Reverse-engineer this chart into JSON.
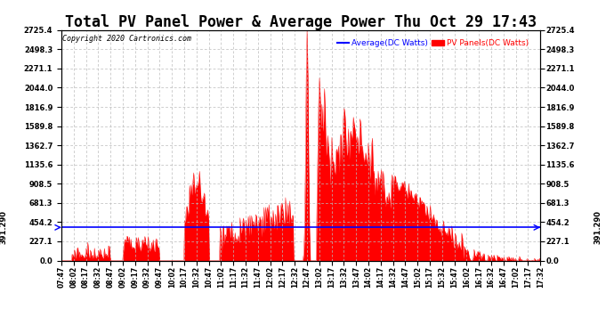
{
  "title": "Total PV Panel Power & Average Power Thu Oct 29 17:43",
  "copyright": "Copyright 2020 Cartronics.com",
  "legend_average": "Average(DC Watts)",
  "legend_pv": "PV Panels(DC Watts)",
  "legend_average_color": "#0000ff",
  "legend_pv_color": "#ff0000",
  "ymin": 0.0,
  "ymax": 2725.4,
  "yticks": [
    0.0,
    227.1,
    454.2,
    681.3,
    908.5,
    1135.6,
    1362.7,
    1589.8,
    1816.9,
    2044.0,
    2271.1,
    2498.3,
    2725.4
  ],
  "avg_line_value": 391.29,
  "avg_line_color": "#0000ff",
  "fill_color": "#ff0000",
  "background_color": "#ffffff",
  "grid_color": "#bbbbbb",
  "title_fontsize": 12,
  "xtick_labels": [
    "07:47",
    "08:02",
    "08:17",
    "08:32",
    "08:47",
    "09:02",
    "09:17",
    "09:32",
    "09:47",
    "10:02",
    "10:17",
    "10:32",
    "10:47",
    "11:02",
    "11:17",
    "11:32",
    "11:47",
    "12:02",
    "12:17",
    "12:32",
    "12:47",
    "13:02",
    "13:17",
    "13:32",
    "13:47",
    "14:02",
    "14:17",
    "14:32",
    "14:47",
    "15:02",
    "15:17",
    "15:32",
    "15:47",
    "16:02",
    "16:17",
    "16:32",
    "16:47",
    "17:02",
    "17:17",
    "17:32"
  ],
  "avg_label": "391.290"
}
